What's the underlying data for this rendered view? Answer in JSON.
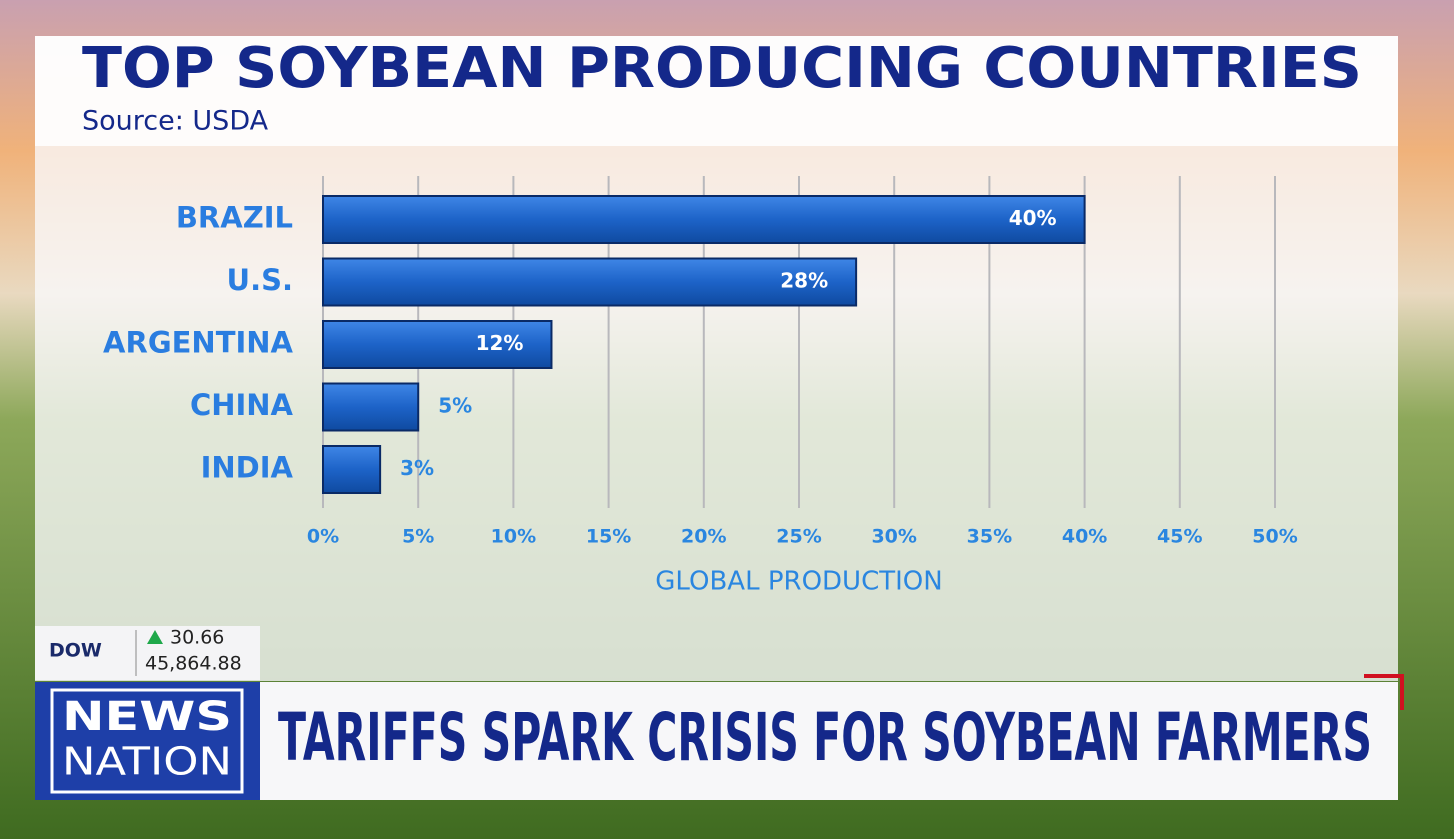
{
  "chart_data": {
    "type": "bar",
    "orientation": "horizontal",
    "title": "TOP SOYBEAN PRODUCING COUNTRIES",
    "subtitle": "Source: USDA",
    "x_label": "GLOBAL PRODUCTION",
    "categories": [
      "BRAZIL",
      "U.S.",
      "ARGENTINA",
      "CHINA",
      "INDIA"
    ],
    "values": [
      40,
      28,
      12,
      5,
      3
    ],
    "value_labels": [
      "40%",
      "28%",
      "12%",
      "5%",
      "3%"
    ],
    "color": "#1d63c8",
    "xlim": [
      0,
      50
    ],
    "xticks": [
      {
        "value": 0,
        "label": "0%"
      },
      {
        "value": 5,
        "label": "5%"
      },
      {
        "value": 10,
        "label": "10%"
      },
      {
        "value": 15,
        "label": "15%"
      },
      {
        "value": 20,
        "label": "20%"
      },
      {
        "value": 25,
        "label": "25%"
      },
      {
        "value": 30,
        "label": "30%"
      },
      {
        "value": 35,
        "label": "35%"
      },
      {
        "value": 40,
        "label": "40%"
      },
      {
        "value": 45,
        "label": "45%"
      },
      {
        "value": 50,
        "label": "50%"
      }
    ],
    "grid": true
  },
  "ticker": {
    "label": "DOW",
    "change": "30.66",
    "value": "45,864.88"
  },
  "logo": {
    "line1": "NEWS",
    "line2": "NATION"
  },
  "banner": {
    "headline": "TARIFFS SPARK CRISIS FOR SOYBEAN FARMERS"
  }
}
